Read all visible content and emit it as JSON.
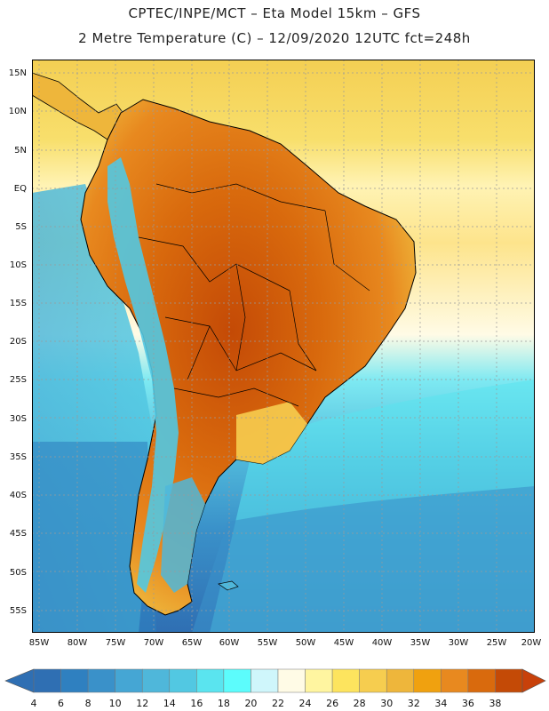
{
  "header": {
    "line1": "CPTEC/INPE/MCT –  Eta Model 15km – GFS",
    "line2": "2 Metre Temperature (C) – 12/09/2020 12UTC fct=248h"
  },
  "map": {
    "lat_labels": [
      "15N",
      "10N",
      "5N",
      "EQ",
      "5S",
      "10S",
      "15S",
      "20S",
      "25S",
      "30S",
      "35S",
      "40S",
      "45S",
      "50S",
      "55S"
    ],
    "lon_labels": [
      "85W",
      "80W",
      "75W",
      "70W",
      "65W",
      "60W",
      "55W",
      "50W",
      "45W",
      "40W",
      "35W",
      "30W",
      "25W",
      "20W"
    ]
  },
  "colorbar": {
    "labels": [
      "4",
      "6",
      "8",
      "10",
      "12",
      "14",
      "16",
      "18",
      "20",
      "22",
      "24",
      "26",
      "28",
      "30",
      "32",
      "34",
      "36",
      "38"
    ],
    "colors": [
      "#2f6fb3",
      "#2f80c0",
      "#3a91c9",
      "#45a6d4",
      "#4fb7da",
      "#52c8e2",
      "#5ae4ef",
      "#5cfcfc",
      "#cff6fb",
      "#fffbe6",
      "#fff5a0",
      "#fde45e",
      "#f6cd4f",
      "#eeb63b",
      "#f0a10f",
      "#e8891f",
      "#d96a0d",
      "#c44a06"
    ]
  }
}
